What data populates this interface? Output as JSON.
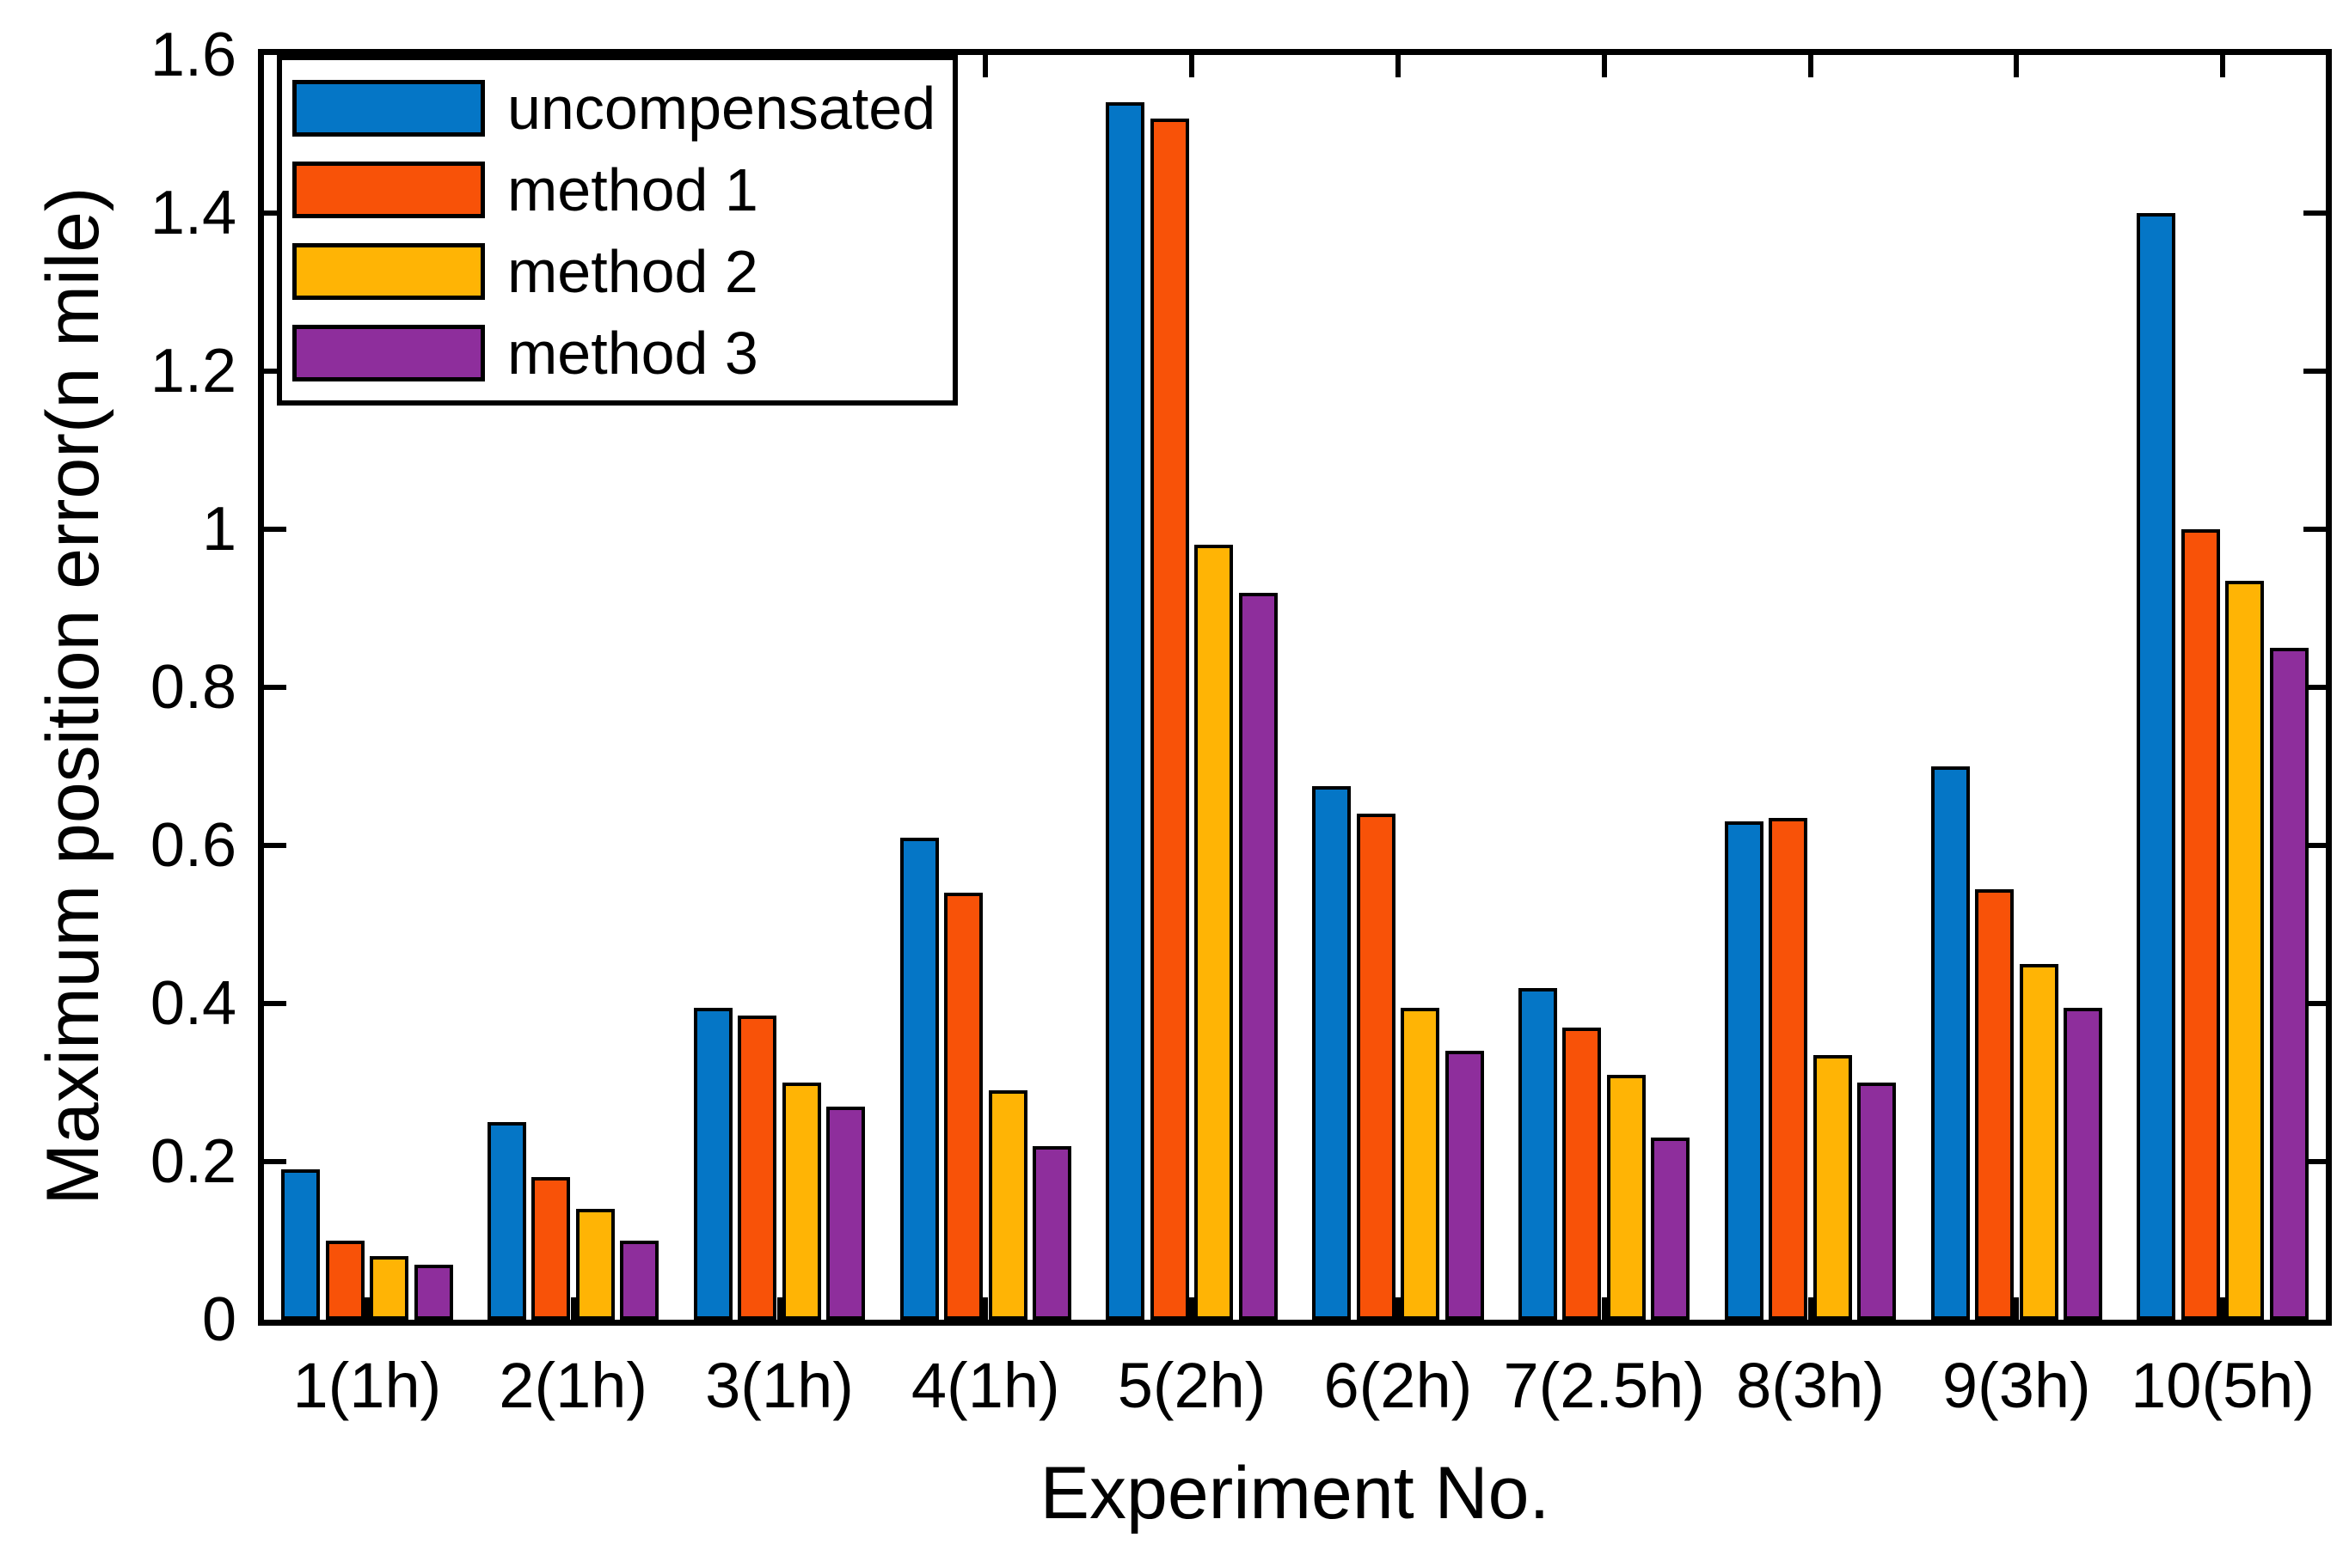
{
  "chart_data": {
    "type": "bar",
    "title": "",
    "xlabel": "Experiment No.",
    "ylabel": "Maximum position error(n mile)",
    "categories": [
      "1(1h)",
      "2(1h)",
      "3(1h)",
      "4(1h)",
      "5(2h)",
      "6(2h)",
      "7(2.5h)",
      "8(3h)",
      "9(3h)",
      "10(5h)"
    ],
    "series": [
      {
        "name": "uncompensated",
        "color": "#0576C6",
        "values": [
          0.19,
          0.25,
          0.395,
          0.61,
          1.54,
          0.675,
          0.42,
          0.63,
          0.7,
          1.4
        ]
      },
      {
        "name": "method 1",
        "color": "#F85208",
        "values": [
          0.1,
          0.18,
          0.385,
          0.54,
          1.52,
          0.64,
          0.37,
          0.635,
          0.545,
          1.0
        ]
      },
      {
        "name": "method 2",
        "color": "#FFB405",
        "values": [
          0.08,
          0.14,
          0.3,
          0.29,
          0.98,
          0.395,
          0.31,
          0.335,
          0.45,
          0.935
        ]
      },
      {
        "name": "method 3",
        "color": "#8E2E9C",
        "values": [
          0.07,
          0.1,
          0.27,
          0.22,
          0.92,
          0.34,
          0.23,
          0.3,
          0.395,
          0.85
        ]
      }
    ],
    "ylim": [
      0,
      1.6
    ],
    "yticks": [
      "0",
      "0.2",
      "0.4",
      "0.6",
      "0.8",
      "1",
      "1.2",
      "1.4",
      "1.6"
    ],
    "grid": false,
    "legend_position": "top-left",
    "bar_edge_color": "#000000",
    "axis_color": "#000000",
    "background_color": "#ffffff"
  }
}
